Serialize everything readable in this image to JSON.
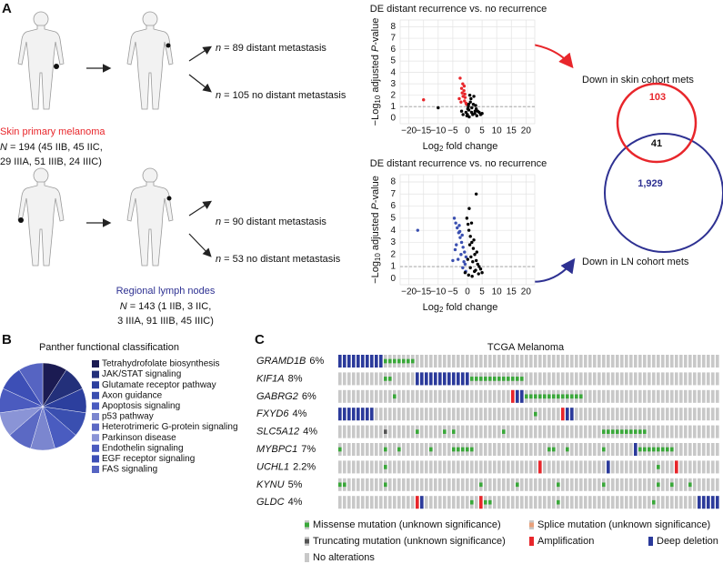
{
  "panel_a": {
    "label": "A",
    "groups": [
      {
        "title": "Skin primary melanoma",
        "color": "#e8262b",
        "n_symbol": "N",
        "cohort_lines": [
          "= 194 (45 IIB, 45 IIC,",
          "29 IIIA, 51 IIIB, 24 IIIC)"
        ],
        "outcomes": [
          {
            "symbol": "n",
            "text": "= 89 distant metastasis"
          },
          {
            "symbol": "n",
            "text": "= 105 no distant metastasis"
          }
        ]
      },
      {
        "title": "Regional lymph nodes",
        "color": "#2e3192",
        "n_symbol": "N",
        "cohort_lines": [
          "= 143 (1 IIB, 3 IIC,",
          "3 IIIA, 91 IIIB, 45 IIIC)"
        ],
        "outcomes": [
          {
            "symbol": "n",
            "text": "= 90 distant metastasis"
          },
          {
            "symbol": "n",
            "text": "= 53 no distant metastasis"
          }
        ]
      }
    ]
  },
  "panel_b": {
    "label": "B"
  },
  "panel_c": {
    "label": "C"
  },
  "chart_data": [
    {
      "type": "scatter",
      "title": "DE distant recurrence vs. no recurrence",
      "xlabel": {
        "pre": "Log",
        "sub": "2",
        "post": " fold change"
      },
      "ylabel": {
        "pre": "−Log",
        "sub": "10",
        "mid": " adjusted ",
        "ital": "P",
        "post": "-value"
      },
      "xlim": [
        -23,
        23
      ],
      "ylim": [
        -0.5,
        8.6
      ],
      "xticks": [
        {
          "value": -20,
          "label": "−20"
        },
        {
          "value": -15,
          "label": "−15"
        },
        {
          "value": -10,
          "label": "−10"
        },
        {
          "value": -5,
          "label": "−5"
        },
        0,
        5,
        10,
        15,
        20
      ],
      "yticks": [
        0,
        1,
        2,
        3,
        4,
        5,
        6,
        7,
        8
      ],
      "grid": true,
      "threshold": 1,
      "series": [
        {
          "color": "#e8262b",
          "x": [
            -15,
            -2.5,
            -2,
            -1.8,
            -1.5,
            -1.2,
            -1,
            -0.8,
            -0.5,
            -2.2,
            -1.6,
            -0.3,
            -1.1,
            -2.8,
            -0.9
          ],
          "values": [
            1.6,
            3.5,
            2.6,
            2.2,
            1.9,
            2.4,
            1.5,
            1.8,
            1.3,
            1.4,
            3,
            1.2,
            2.8,
            1.7,
            2.1
          ]
        },
        {
          "color": "#000000",
          "x": [
            -10,
            -0.5,
            0,
            0.3,
            0.5,
            1,
            1.5,
            2,
            2.5,
            3,
            3.5,
            4,
            4.5,
            5,
            0.8,
            1.2,
            2.2,
            -0.2,
            0.1,
            1.8,
            2.8,
            3.2,
            0.6,
            1.4,
            -1.5,
            -2,
            0.4,
            2.6
          ],
          "values": [
            0.9,
            0.5,
            0.3,
            1,
            0.7,
            1.4,
            0.9,
            1.2,
            0.4,
            0.8,
            0.6,
            0.5,
            0.3,
            0.4,
            2,
            1.7,
            1.9,
            0.2,
            0.8,
            0.3,
            1.1,
            0.2,
            0.1,
            0.5,
            0.3,
            0.6,
            1.2,
            0.6
          ]
        }
      ]
    },
    {
      "type": "scatter",
      "title": "DE distant recurrence vs. no recurrence",
      "xlabel": {
        "pre": "Log",
        "sub": "2",
        "post": " fold change"
      },
      "ylabel": {
        "pre": "−Log",
        "sub": "10",
        "mid": " adjusted ",
        "ital": "P",
        "post": "-value"
      },
      "xlim": [
        -23,
        23
      ],
      "ylim": [
        -0.5,
        8.6
      ],
      "xticks": [
        {
          "value": -20,
          "label": "−20"
        },
        {
          "value": -15,
          "label": "−15"
        },
        {
          "value": -10,
          "label": "−10"
        },
        {
          "value": -5,
          "label": "−5"
        },
        0,
        5,
        10,
        15,
        20
      ],
      "yticks": [
        0,
        1,
        2,
        3,
        4,
        5,
        6,
        7,
        8
      ],
      "grid": true,
      "threshold": 1,
      "series": [
        {
          "color": "#3a4fb0",
          "x": [
            -17,
            -4.5,
            -4,
            -3.5,
            -3,
            -2.5,
            -2,
            -1.5,
            -1,
            -0.5,
            -3.8,
            -2.8,
            -1.8,
            -1.2,
            -0.8,
            -2.2,
            -3.2,
            -4.2,
            -1.6,
            -0.6,
            -5,
            -2.6
          ],
          "values": [
            4,
            5,
            4.6,
            4.2,
            3.8,
            3.4,
            3,
            2.6,
            2.2,
            1.8,
            2.8,
            4.4,
            3.6,
            1.4,
            1.2,
            2,
            1.6,
            2.4,
            0.9,
            0.6,
            1.5,
            3.9
          ]
        },
        {
          "color": "#000000",
          "x": [
            3,
            -0.2,
            0.2,
            0.5,
            1,
            1.5,
            2,
            2.5,
            3,
            3.5,
            4,
            4.5,
            5,
            0.8,
            1.2,
            1.8,
            2.2,
            2.8,
            3.2,
            0.4,
            1,
            0.1,
            1.6,
            2.4,
            3.8,
            -0.8,
            0.6,
            1.4
          ],
          "values": [
            7,
            5,
            4.5,
            4,
            3.5,
            3,
            2.5,
            2,
            1.5,
            1.2,
            1,
            0.8,
            0.5,
            2.8,
            1.8,
            1.4,
            3.2,
            0.7,
            2.2,
            0.3,
            0.9,
            1.6,
            0.2,
            0.6,
            0.4,
            0.5,
            5.8,
            4.6
          ]
        }
      ]
    },
    {
      "type": "venn",
      "sets": [
        {
          "name": "Down in skin cohort mets",
          "color": "#e8262b"
        },
        {
          "name": "Down in LN cohort mets",
          "color": "#2e3192"
        }
      ],
      "values": [
        103,
        41,
        1929
      ],
      "value_labels": [
        "103",
        "41",
        "1,929"
      ]
    },
    {
      "type": "pie",
      "title": "Panther functional classification",
      "categories": [
        "Tetrahydrofolate biosynthesis",
        "JAK/STAT signaling",
        "Glutamate receptor pathway",
        "Axon guidance",
        "Apoptosis signaling",
        "p53 pathway",
        "Heterotrimeric G-protein signaling",
        "Parkinson disease",
        "Endothelin signaling",
        "EGF receptor signaling",
        "FAS signaling"
      ],
      "values": [
        1,
        1,
        1,
        1,
        1,
        1,
        1,
        1,
        1,
        1,
        1
      ],
      "colors": [
        "#1b1b52",
        "#23307a",
        "#2c3f9e",
        "#3a4fb0",
        "#4a5cc0",
        "#7b86cf",
        "#5b69c4",
        "#8a94d6",
        "#4b5bbf",
        "#3d4fb6",
        "#5664c2"
      ]
    },
    {
      "type": "oncoprint",
      "title": "TCGA Melanoma",
      "categories": [
        "GRAMD1B",
        "KIF1A",
        "GABRG2",
        "FXYD6",
        "SLC5A12",
        "MYBPC1",
        "UCHL1",
        "KYNU",
        "GLDC"
      ],
      "values": [
        6,
        8,
        6,
        4,
        4,
        7,
        2.2,
        5,
        4
      ],
      "value_labels": [
        "6%",
        "8%",
        "6%",
        "4%",
        "4%",
        "7%",
        "2.2%",
        "5%",
        "4%"
      ],
      "samples": 84,
      "legend": [
        {
          "name": "Missense mutation (unknown significance)",
          "color": "#3aa83a"
        },
        {
          "name": "Splice mutation (unknown significance)",
          "color": "#e8a07a"
        },
        {
          "name": "Truncating mutation (unknown significance)",
          "color": "#555555"
        },
        {
          "name": "Amplification",
          "color": "#e8262b"
        },
        {
          "name": "Deep deletion",
          "color": "#2b3a9b"
        },
        {
          "name": "No alterations",
          "color": "#c8c8c8"
        }
      ],
      "alterations": [
        [
          [
            10,
            11,
            12,
            13,
            14,
            15,
            16
          ],
          [],
          [],
          [],
          [
            0,
            1,
            2,
            3,
            4,
            5,
            6,
            7,
            8,
            9
          ]
        ],
        [
          [
            10,
            11,
            29,
            30,
            31,
            32,
            33,
            34,
            35,
            36,
            37,
            38,
            39,
            40
          ],
          [],
          [],
          [],
          [
            17,
            18,
            19,
            20,
            21,
            22,
            23,
            24,
            25,
            26,
            27,
            28
          ]
        ],
        [
          [
            12,
            41,
            42,
            43,
            44,
            45,
            46,
            47,
            48,
            49,
            50,
            51,
            52,
            53
          ],
          [],
          [],
          [
            38
          ],
          [
            39,
            40
          ]
        ],
        [
          [
            43
          ],
          [],
          [],
          [
            49
          ],
          [
            0,
            1,
            2,
            3,
            4,
            5,
            6,
            7,
            50,
            51
          ]
        ],
        [
          [
            17,
            23,
            25,
            36,
            58,
            59,
            60,
            61,
            62,
            63,
            64,
            65,
            66,
            67
          ],
          [],
          [
            10
          ],
          [],
          []
        ],
        [
          [
            0,
            10,
            13,
            20,
            25,
            26,
            27,
            28,
            29,
            46,
            47,
            50,
            58,
            66,
            67,
            68,
            69,
            70,
            71,
            72,
            73
          ],
          [],
          [],
          [],
          [
            65
          ]
        ],
        [
          [
            10,
            70
          ],
          [],
          [],
          [
            44,
            74
          ],
          [
            59
          ]
        ],
        [
          [
            0,
            1,
            10,
            31,
            39,
            48,
            58,
            70,
            73,
            77
          ],
          [],
          [],
          [],
          []
        ],
        [
          [
            29,
            32,
            33,
            48,
            69
          ],
          [],
          [],
          [
            17,
            31
          ],
          [
            18,
            79,
            80,
            81,
            82,
            83
          ]
        ]
      ]
    }
  ]
}
